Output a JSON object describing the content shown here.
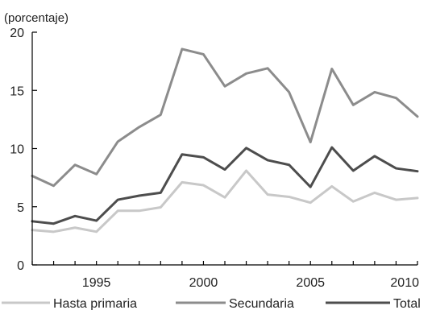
{
  "chart_data": {
    "type": "line",
    "ylabel": "(porcentaje)",
    "xlim": [
      1992,
      2010
    ],
    "ylim": [
      0,
      20
    ],
    "yticks": [
      0,
      5,
      10,
      15,
      20
    ],
    "xticks": [
      1995,
      2000,
      2005,
      2010
    ],
    "grid": false,
    "legend_position": "bottom",
    "x": [
      1992,
      1993,
      1994,
      1995,
      1996,
      1997,
      1998,
      1999,
      2000,
      2001,
      2002,
      2003,
      2004,
      2005,
      2006,
      2007,
      2008,
      2009,
      2010
    ],
    "series": [
      {
        "name": "Hasta primaria",
        "color": "#c8c8c8",
        "values": [
          3.0,
          2.85,
          3.2,
          2.85,
          4.65,
          4.65,
          4.95,
          7.1,
          6.85,
          5.8,
          8.1,
          6.05,
          5.85,
          5.35,
          6.75,
          5.45,
          6.2,
          5.6,
          5.75
        ]
      },
      {
        "name": "Secundaria",
        "color": "#8c8c8c",
        "values": [
          7.65,
          6.8,
          8.6,
          7.8,
          10.6,
          11.85,
          12.9,
          18.55,
          18.1,
          15.35,
          16.45,
          16.9,
          14.85,
          10.55,
          16.85,
          13.75,
          14.85,
          14.35,
          12.75
        ]
      },
      {
        "name": "Total",
        "color": "#4d4d4d",
        "values": [
          3.75,
          3.55,
          4.2,
          3.8,
          5.6,
          5.95,
          6.2,
          9.5,
          9.25,
          8.2,
          10.05,
          9.0,
          8.6,
          6.7,
          10.1,
          8.1,
          9.35,
          8.3,
          8.05
        ]
      }
    ]
  }
}
